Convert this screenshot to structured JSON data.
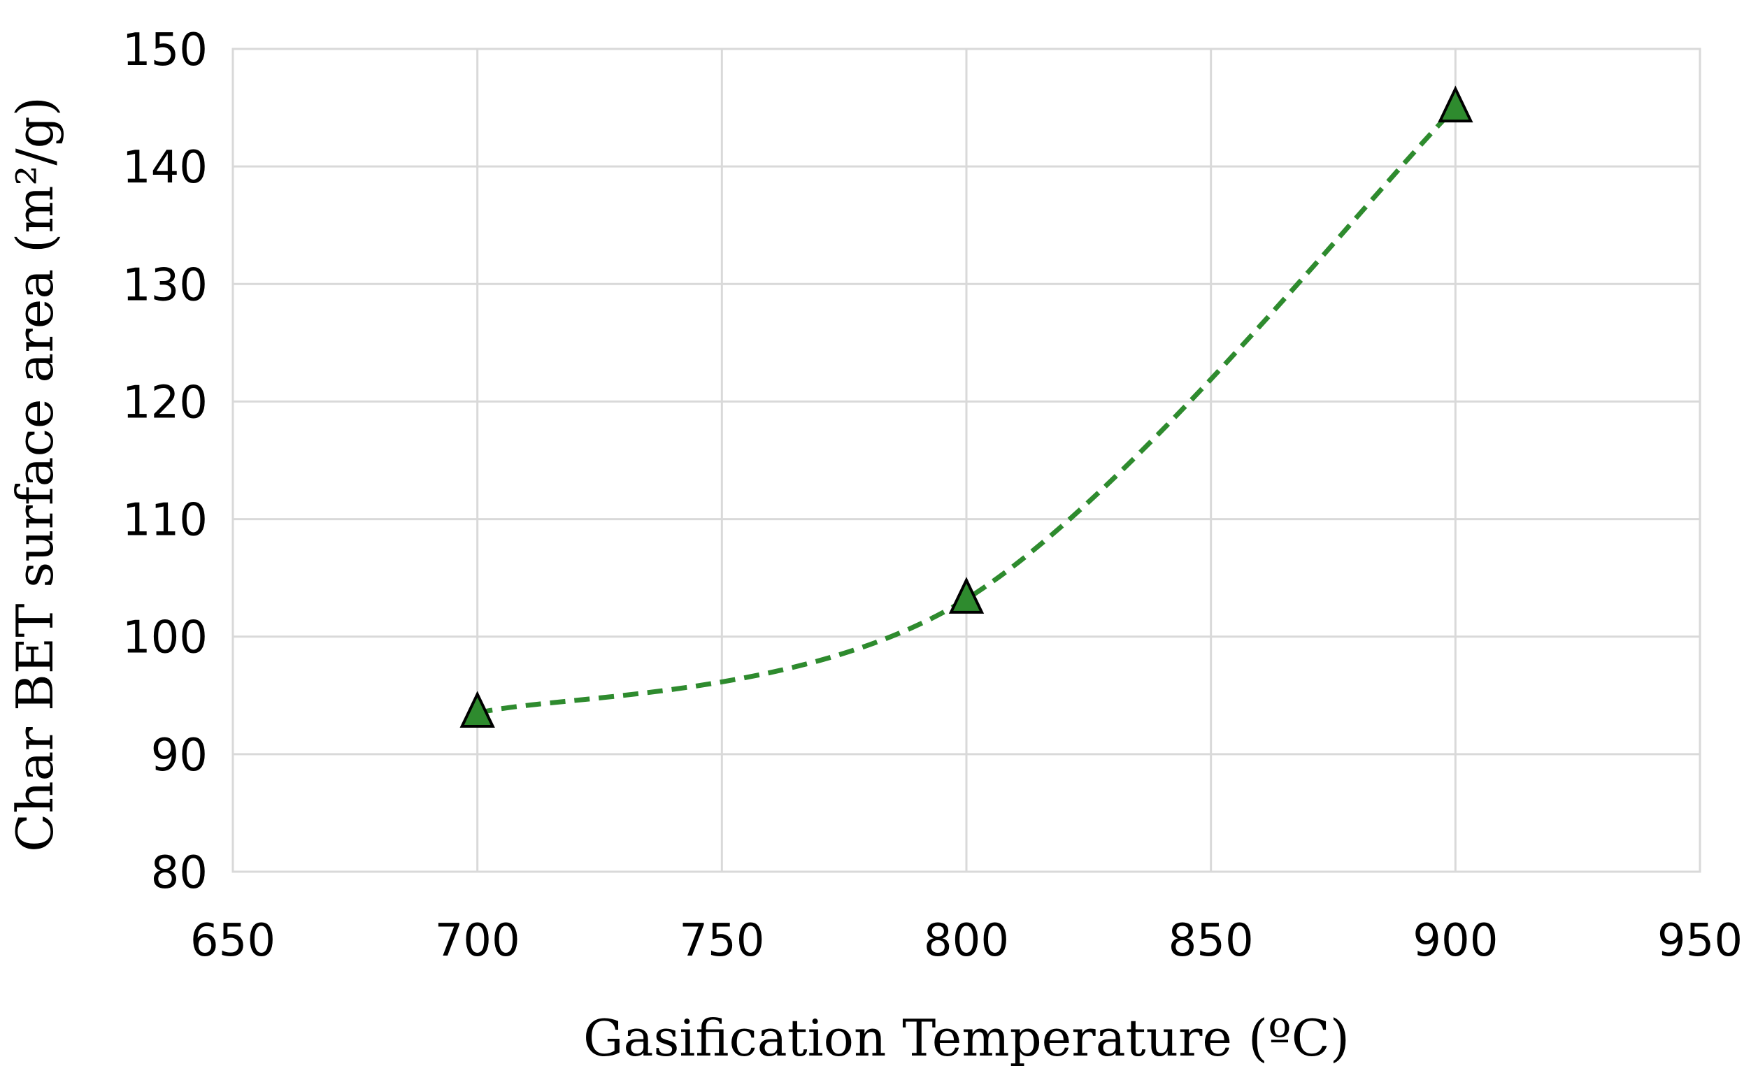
{
  "chart_data": {
    "type": "scatter",
    "title": "",
    "xlabel": "Gasification Temperature (ºC)",
    "ylabel": "Char BET surface area (m²/g)",
    "xlim": [
      650,
      950
    ],
    "ylim": [
      80,
      150
    ],
    "xticks": [
      650,
      700,
      750,
      800,
      850,
      900,
      950
    ],
    "yticks": [
      80,
      90,
      100,
      110,
      120,
      130,
      140,
      150
    ],
    "grid": true,
    "legend": "none",
    "series": [
      {
        "name": "Char BET surface area",
        "x": [
          700,
          800,
          900
        ],
        "y": [
          93.5,
          103.2,
          145
        ],
        "marker": "triangle",
        "line": "smoothed-dashed",
        "color": "#2e8b2e"
      }
    ]
  }
}
